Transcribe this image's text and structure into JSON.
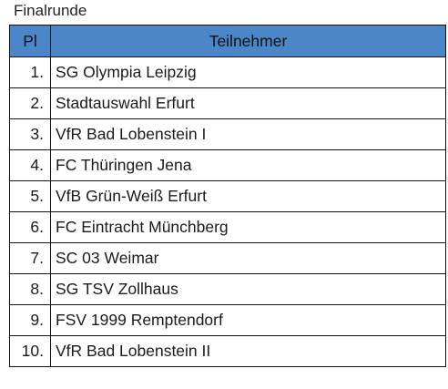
{
  "caption": "Finalrunde",
  "table": {
    "headers": {
      "rank": "Pl",
      "team": "Teilnehmer"
    },
    "rows": [
      {
        "rank": "1.",
        "team": "SG Olympia Leipzig"
      },
      {
        "rank": "2.",
        "team": "Stadtauswahl Erfurt"
      },
      {
        "rank": "3.",
        "team": "VfR Bad Lobenstein I"
      },
      {
        "rank": "4.",
        "team": "FC Thüringen Jena"
      },
      {
        "rank": "5.",
        "team": "VfB Grün-Weiß Erfurt"
      },
      {
        "rank": "6.",
        "team": "FC Eintracht Münchberg"
      },
      {
        "rank": "7.",
        "team": "SC 03 Weimar"
      },
      {
        "rank": "8.",
        "team": "SG TSV Zollhaus"
      },
      {
        "rank": "9.",
        "team": "FSV 1999 Remptendorf"
      },
      {
        "rank": "10.",
        "team": "VfR Bad Lobenstein II"
      }
    ]
  },
  "colors": {
    "header_background": "#4a86c8",
    "border": "#111111",
    "text": "#1a1a1a"
  }
}
